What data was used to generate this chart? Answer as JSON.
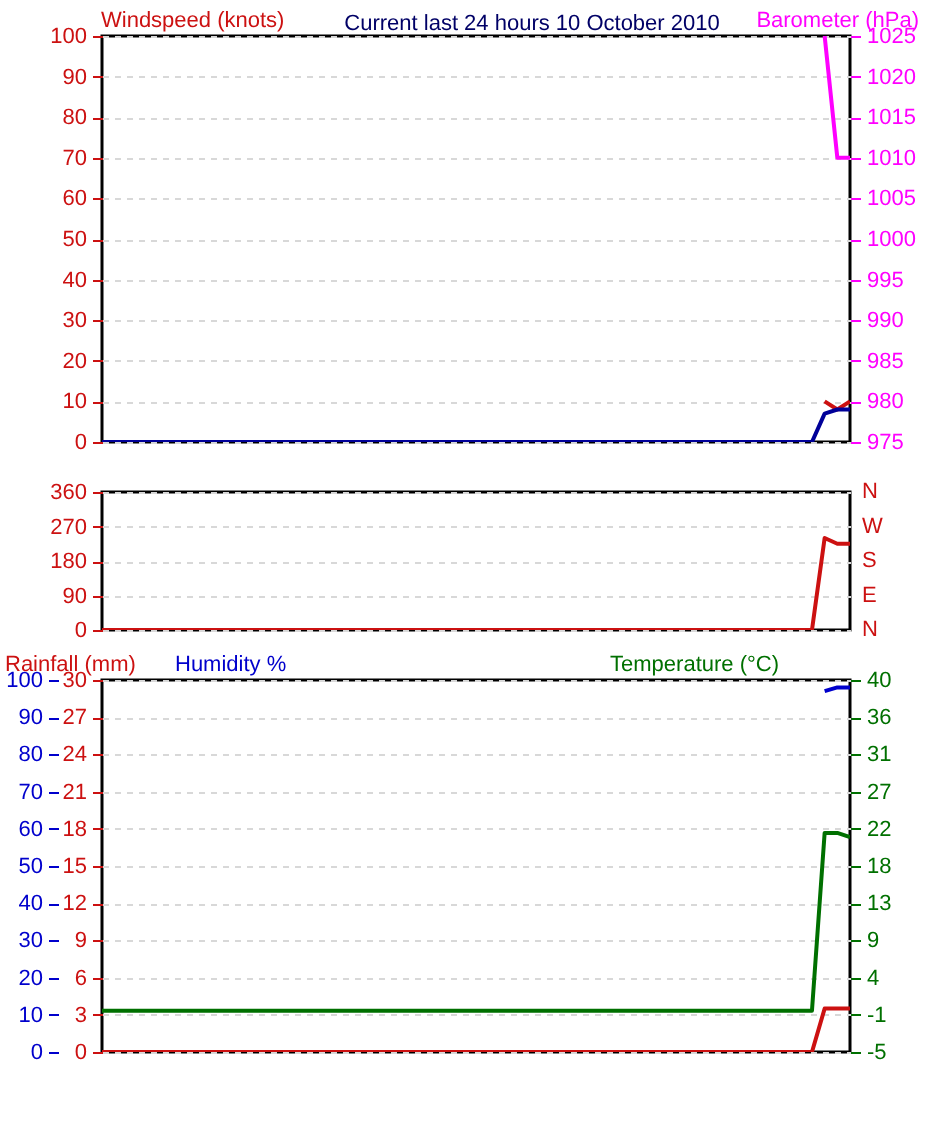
{
  "chart_data": [
    {
      "type": "line",
      "title": "Current last 24 hours 10 October 2010",
      "ylabel": "Windspeed (knots)",
      "y2label": "Barometer (hPa)",
      "tick_labels": "y",
      "grid": "y",
      "categories": [
        null,
        null,
        null,
        null,
        null,
        null,
        null,
        null,
        null,
        null,
        null,
        null,
        null,
        null,
        null,
        null,
        null,
        null,
        null,
        null,
        null,
        null,
        null,
        null,
        null,
        null,
        null,
        null,
        null,
        null,
        null,
        null,
        null,
        null,
        null,
        null,
        null,
        null,
        null,
        null,
        null,
        null,
        null,
        null,
        null,
        null,
        null,
        null,
        null,
        null,
        null,
        null,
        null,
        null,
        null,
        null,
        null,
        null,
        null,
        null
      ],
      "ylim": [
        0,
        100
      ],
      "yticks": [
        0,
        10,
        20,
        30,
        40,
        50,
        60,
        70,
        80,
        90,
        100
      ],
      "y2lim": [
        975,
        1025
      ],
      "y2ticks": [
        975,
        980,
        985,
        990,
        995,
        1000,
        1005,
        1010,
        1015,
        1020,
        1025
      ],
      "series": [
        {
          "color": "#cc1111",
          "values": [
            null,
            null,
            null,
            null,
            null,
            null,
            null,
            null,
            null,
            null,
            null,
            null,
            null,
            null,
            null,
            null,
            null,
            null,
            null,
            null,
            null,
            null,
            null,
            null,
            null,
            null,
            null,
            null,
            null,
            null,
            null,
            null,
            null,
            null,
            null,
            null,
            null,
            null,
            null,
            null,
            null,
            null,
            null,
            null,
            null,
            null,
            null,
            null,
            null,
            null,
            null,
            null,
            null,
            null,
            null,
            null,
            null,
            10,
            8,
            10
          ]
        },
        {
          "color": "#000099",
          "values": [
            0,
            0,
            0,
            0,
            0,
            0,
            0,
            0,
            0,
            0,
            0,
            0,
            0,
            0,
            0,
            0,
            0,
            0,
            0,
            0,
            0,
            0,
            0,
            0,
            0,
            0,
            0,
            0,
            0,
            0,
            0,
            0,
            0,
            0,
            0,
            0,
            0,
            0,
            0,
            0,
            0,
            0,
            0,
            0,
            0,
            0,
            0,
            0,
            0,
            0,
            0,
            0,
            0,
            0,
            0,
            0,
            0,
            7,
            8,
            8
          ]
        },
        {
          "color": "#ff00ff",
          "axis": "y2",
          "values": [
            null,
            null,
            null,
            null,
            null,
            null,
            null,
            null,
            null,
            null,
            null,
            null,
            null,
            null,
            null,
            null,
            null,
            null,
            null,
            null,
            null,
            null,
            null,
            null,
            null,
            null,
            null,
            null,
            null,
            null,
            null,
            null,
            null,
            null,
            null,
            null,
            null,
            null,
            null,
            null,
            null,
            null,
            null,
            null,
            null,
            null,
            null,
            null,
            null,
            null,
            null,
            null,
            null,
            null,
            null,
            null,
            null,
            1025,
            1010,
            1010
          ]
        }
      ]
    },
    {
      "type": "line",
      "tick_labels": "y",
      "grid": "y",
      "categories": [
        null,
        null,
        null,
        null,
        null,
        null,
        null,
        null,
        null,
        null,
        null,
        null,
        null,
        null,
        null,
        null,
        null,
        null,
        null,
        null,
        null,
        null,
        null,
        null,
        null,
        null,
        null,
        null,
        null,
        null,
        null,
        null,
        null,
        null,
        null,
        null,
        null,
        null,
        null,
        null,
        null,
        null,
        null,
        null,
        null,
        null,
        null,
        null,
        null,
        null,
        null,
        null,
        null,
        null,
        null,
        null,
        null,
        null,
        null,
        null
      ],
      "ylim": [
        0,
        360
      ],
      "yticks": [
        0,
        90,
        180,
        270,
        360
      ],
      "annotations": [
        "N",
        "W",
        "S",
        "E",
        "N"
      ],
      "series": [
        {
          "color": "#cc1111",
          "values": [
            0,
            0,
            0,
            0,
            0,
            0,
            0,
            0,
            0,
            0,
            0,
            0,
            0,
            0,
            0,
            0,
            0,
            0,
            0,
            0,
            0,
            0,
            0,
            0,
            0,
            0,
            0,
            0,
            0,
            0,
            0,
            0,
            0,
            0,
            0,
            0,
            0,
            0,
            0,
            0,
            0,
            0,
            0,
            0,
            0,
            0,
            0,
            0,
            0,
            0,
            0,
            0,
            0,
            0,
            0,
            0,
            0,
            240,
            225,
            225
          ]
        }
      ]
    },
    {
      "type": "line",
      "ylabel": "Rainfall (mm)",
      "y3label": "Humidity %",
      "y2label": "Temperature (°C)",
      "tick_labels": "y",
      "grid": "y",
      "categories": [
        null,
        null,
        null,
        null,
        null,
        null,
        null,
        null,
        null,
        null,
        null,
        null,
        null,
        null,
        null,
        null,
        null,
        null,
        null,
        null,
        null,
        null,
        null,
        null,
        null,
        null,
        null,
        null,
        null,
        null,
        null,
        null,
        null,
        null,
        null,
        null,
        null,
        null,
        null,
        null,
        null,
        null,
        null,
        null,
        null,
        null,
        null,
        null,
        null,
        null,
        null,
        null,
        null,
        null,
        null,
        null,
        null,
        null,
        null,
        null
      ],
      "ylim": [
        0,
        30
      ],
      "yticks": [
        0,
        3,
        6,
        9,
        12,
        15,
        18,
        21,
        24,
        27,
        30
      ],
      "y3lim": [
        0,
        100
      ],
      "y3ticks": [
        0,
        10,
        20,
        30,
        40,
        50,
        60,
        70,
        80,
        90,
        100
      ],
      "y2lim": [
        -5,
        40
      ],
      "y2ticks": [
        -5,
        {
          "value": -0.5,
          "label": "-1"
        },
        4,
        {
          "value": 8.5,
          "label": "9"
        },
        13,
        {
          "value": 17.5,
          "label": "18"
        },
        22,
        {
          "value": 26.5,
          "label": "27"
        },
        31,
        {
          "value": 35.5,
          "label": "36"
        },
        40
      ],
      "series": [
        {
          "color": "#0000cc",
          "axis": "y3",
          "values": [
            null,
            null,
            null,
            null,
            null,
            null,
            null,
            null,
            null,
            null,
            null,
            null,
            null,
            null,
            null,
            null,
            null,
            null,
            null,
            null,
            null,
            null,
            null,
            null,
            null,
            null,
            null,
            null,
            null,
            null,
            null,
            null,
            null,
            null,
            null,
            null,
            null,
            null,
            null,
            null,
            null,
            null,
            null,
            null,
            null,
            null,
            null,
            null,
            null,
            null,
            null,
            null,
            null,
            null,
            null,
            null,
            null,
            97,
            98,
            98
          ]
        },
        {
          "color": "#007000",
          "axis": "y2",
          "values": [
            0,
            0,
            0,
            0,
            0,
            0,
            0,
            0,
            0,
            0,
            0,
            0,
            0,
            0,
            0,
            0,
            0,
            0,
            0,
            0,
            0,
            0,
            0,
            0,
            0,
            0,
            0,
            0,
            0,
            0,
            0,
            0,
            0,
            0,
            0,
            0,
            0,
            0,
            0,
            0,
            0,
            0,
            0,
            0,
            0,
            0,
            0,
            0,
            0,
            0,
            0,
            0,
            0,
            0,
            0,
            0,
            0,
            21.5,
            21.5,
            21
          ]
        },
        {
          "color": "#cc1111",
          "values": [
            0,
            0,
            0,
            0,
            0,
            0,
            0,
            0,
            0,
            0,
            0,
            0,
            0,
            0,
            0,
            0,
            0,
            0,
            0,
            0,
            0,
            0,
            0,
            0,
            0,
            0,
            0,
            0,
            0,
            0,
            0,
            0,
            0,
            0,
            0,
            0,
            0,
            0,
            0,
            0,
            0,
            0,
            0,
            0,
            0,
            0,
            0,
            0,
            0,
            0,
            0,
            0,
            0,
            0,
            0,
            0,
            0,
            3.5,
            3.5,
            3.5
          ]
        }
      ]
    }
  ]
}
